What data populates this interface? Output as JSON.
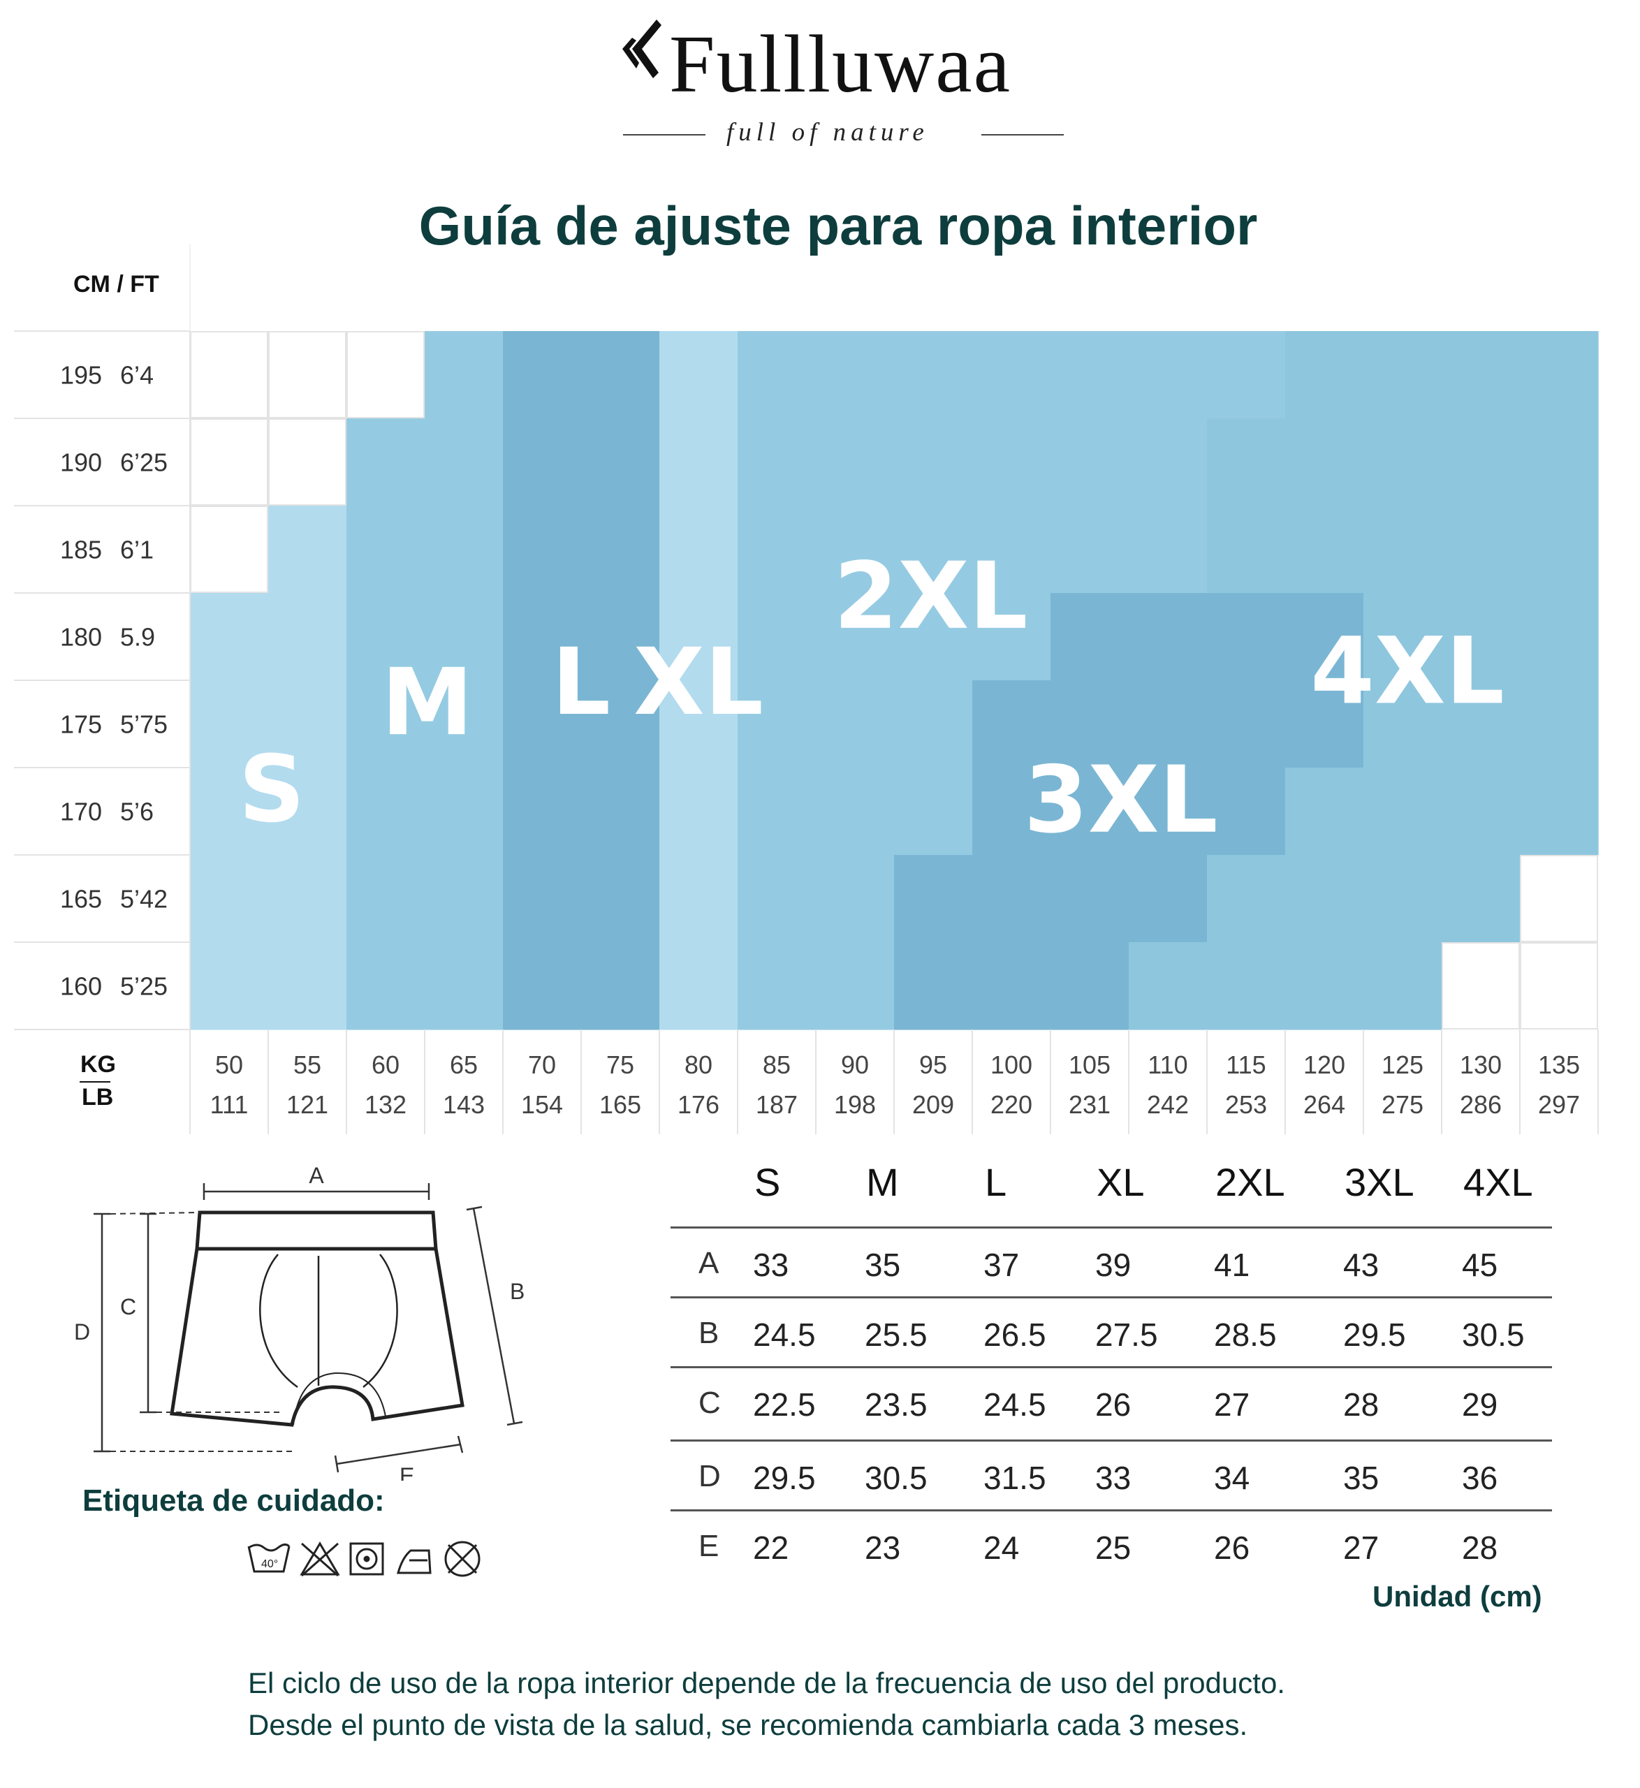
{
  "brand": {
    "name": "Fullluwaa",
    "tagline": "full of nature"
  },
  "title": "Guía de ajuste para ropa interior",
  "chart_data": {
    "type": "heatmap",
    "title": "Guía de ajuste para ropa interior",
    "y_axis_label": "CM / FT",
    "x_axis_label_top": "KG",
    "x_axis_label_bottom": "LB",
    "height_rows": [
      {
        "cm": "195",
        "ft": "6’4"
      },
      {
        "cm": "190",
        "ft": "6’25"
      },
      {
        "cm": "185",
        "ft": "6’1"
      },
      {
        "cm": "180",
        "ft": "5.9"
      },
      {
        "cm": "175",
        "ft": "5’75"
      },
      {
        "cm": "170",
        "ft": "5’6"
      },
      {
        "cm": "165",
        "ft": "5’42"
      },
      {
        "cm": "160",
        "ft": "5’25"
      }
    ],
    "weight_columns": [
      {
        "kg": "50",
        "lb": "111"
      },
      {
        "kg": "55",
        "lb": "121"
      },
      {
        "kg": "60",
        "lb": "132"
      },
      {
        "kg": "65",
        "lb": "143"
      },
      {
        "kg": "70",
        "lb": "154"
      },
      {
        "kg": "75",
        "lb": "165"
      },
      {
        "kg": "80",
        "lb": "176"
      },
      {
        "kg": "85",
        "lb": "187"
      },
      {
        "kg": "90",
        "lb": "198"
      },
      {
        "kg": "95",
        "lb": "209"
      },
      {
        "kg": "100",
        "lb": "220"
      },
      {
        "kg": "105",
        "lb": "231"
      },
      {
        "kg": "110",
        "lb": "242"
      },
      {
        "kg": "115",
        "lb": "253"
      },
      {
        "kg": "120",
        "lb": "264"
      },
      {
        "kg": "125",
        "lb": "275"
      },
      {
        "kg": "130",
        "lb": "286"
      },
      {
        "kg": "135",
        "lb": "297"
      }
    ],
    "sizes": [
      "S",
      "M",
      "L",
      "XL",
      "2XL",
      "3XL",
      "4XL"
    ],
    "colors": {
      "S": "#b2dbee",
      "M": "#95cbe2",
      "L": "#7ab6d3",
      "XL": "#b2dbee",
      "2XL": "#95cbe2",
      "3XL": "#7ab6d3",
      "4XL": "#8ec6de",
      "empty": "#ffffff"
    },
    "grid": [
      [
        null,
        null,
        null,
        "M",
        "L",
        "L",
        "XL",
        "2XL",
        "2XL",
        "2XL",
        "2XL",
        "2XL",
        "2XL",
        "2XL",
        "4XL",
        "4XL",
        "4XL",
        "4XL"
      ],
      [
        null,
        null,
        "M",
        "M",
        "L",
        "L",
        "XL",
        "2XL",
        "2XL",
        "2XL",
        "2XL",
        "2XL",
        "2XL",
        "4XL",
        "4XL",
        "4XL",
        "4XL",
        "4XL"
      ],
      [
        null,
        "S",
        "M",
        "M",
        "L",
        "L",
        "XL",
        "2XL",
        "2XL",
        "2XL",
        "2XL",
        "2XL",
        "2XL",
        "4XL",
        "4XL",
        "4XL",
        "4XL",
        "4XL"
      ],
      [
        "S",
        "S",
        "M",
        "M",
        "L",
        "L",
        "XL",
        "2XL",
        "2XL",
        "2XL",
        "2XL",
        "3XL",
        "3XL",
        "3XL",
        "3XL",
        "4XL",
        "4XL",
        "4XL"
      ],
      [
        "S",
        "S",
        "M",
        "M",
        "L",
        "L",
        "XL",
        "2XL",
        "2XL",
        "2XL",
        "3XL",
        "3XL",
        "3XL",
        "3XL",
        "3XL",
        "4XL",
        "4XL",
        "4XL"
      ],
      [
        "S",
        "S",
        "M",
        "M",
        "L",
        "L",
        "XL",
        "2XL",
        "2XL",
        "2XL",
        "3XL",
        "3XL",
        "3XL",
        "3XL",
        "4XL",
        "4XL",
        "4XL",
        "4XL"
      ],
      [
        "S",
        "S",
        "M",
        "M",
        "L",
        "L",
        "XL",
        "2XL",
        "2XL",
        "3XL",
        "3XL",
        "3XL",
        "3XL",
        "4XL",
        "4XL",
        "4XL",
        "4XL",
        null
      ],
      [
        "S",
        "S",
        "M",
        "M",
        "L",
        "L",
        "XL",
        "2XL",
        "2XL",
        "3XL",
        "3XL",
        "3XL",
        "4XL",
        "4XL",
        "4XL",
        "4XL",
        null,
        null
      ]
    ]
  },
  "measurements": {
    "sizes": [
      "S",
      "M",
      "L",
      "XL",
      "2XL",
      "3XL",
      "4XL"
    ],
    "rows": [
      {
        "label": "A",
        "values": [
          "33",
          "35",
          "37",
          "39",
          "41",
          "43",
          "45"
        ]
      },
      {
        "label": "B",
        "values": [
          "24.5",
          "25.5",
          "26.5",
          "27.5",
          "28.5",
          "29.5",
          "30.5"
        ]
      },
      {
        "label": "C",
        "values": [
          "22.5",
          "23.5",
          "24.5",
          "26",
          "27",
          "28",
          "29"
        ]
      },
      {
        "label": "D",
        "values": [
          "29.5",
          "30.5",
          "31.5",
          "33",
          "34",
          "35",
          "36"
        ]
      },
      {
        "label": "E",
        "values": [
          "22",
          "23",
          "24",
          "25",
          "26",
          "27",
          "28"
        ]
      }
    ],
    "unit_note": "Unidad (cm)"
  },
  "diagram": {
    "labels": [
      "A",
      "B",
      "C",
      "D",
      "E"
    ]
  },
  "care": {
    "label": "Etiqueta de cuidado:",
    "wash_temp": "40°",
    "icons": [
      "wash-40-icon",
      "no-bleach-icon",
      "tumble-dry-icon",
      "iron-icon",
      "no-dry-clean-icon"
    ]
  },
  "footer": {
    "line1": "El ciclo de uso de la ropa interior depende de la frecuencia de uso del producto.",
    "line2": "Desde el punto de vista de la salud, se recomienda cambiarla cada 3 meses."
  }
}
